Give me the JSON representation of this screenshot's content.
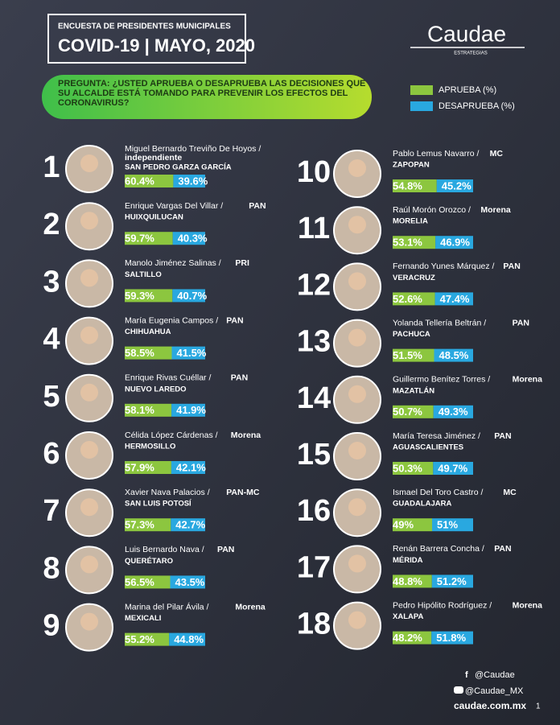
{
  "header": {
    "subtitle": "ENCUESTA DE PRESIDENTES MUNICIPALES",
    "title": "COVID-19 | MAYO, 2020"
  },
  "logo": {
    "name": "Caudae",
    "tagline": "ESTRATEGIAS"
  },
  "question": "PREGUNTA: ¿USTED APRUEBA O DESAPRUEBA LAS DECISIONES QUE SU ALCALDE ESTÁ TOMANDO PARA PREVENIR LOS EFECTOS DEL CORONAVIRUS?",
  "legend": [
    {
      "label": "APRUEBA (%)",
      "color": "#8cc63f"
    },
    {
      "label": "DESAPRUEBA (%)",
      "color": "#29a8e0"
    }
  ],
  "mayors": [
    {
      "rank": 1,
      "name": "Miguel Bernardo Treviño De Hoyos /",
      "party": "independiente",
      "city": "SAN PEDRO GARZA GARCÍA",
      "approve": 60.4,
      "approve_label": "60.4%",
      "disapprove": 39.6,
      "disapprove_label": "39.6%"
    },
    {
      "rank": 2,
      "name": "Enrique Vargas Del Villar /",
      "party": "PAN",
      "city": "HUIXQUILUCAN",
      "approve": 59.7,
      "approve_label": "59.7%",
      "disapprove": 40.3,
      "disapprove_label": "40.3%"
    },
    {
      "rank": 3,
      "name": "Manolo Jiménez Salinas /",
      "party": "PRI",
      "city": "SALTILLO",
      "approve": 59.3,
      "approve_label": "59.3%",
      "disapprove": 40.7,
      "disapprove_label": "40.7%"
    },
    {
      "rank": 4,
      "name": "María Eugenia Campos /",
      "party": "PAN",
      "city": "CHIHUAHUA",
      "approve": 58.5,
      "approve_label": "58.5%",
      "disapprove": 41.5,
      "disapprove_label": "41.5%"
    },
    {
      "rank": 5,
      "name": "Enrique Rivas Cuéllar /",
      "party": "PAN",
      "city": "NUEVO LAREDO",
      "approve": 58.1,
      "approve_label": "58.1%",
      "disapprove": 41.9,
      "disapprove_label": "41.9%"
    },
    {
      "rank": 6,
      "name": "Célida López Cárdenas /",
      "party": "Morena",
      "city": "HERMOSILLO",
      "approve": 57.9,
      "approve_label": "57.9%",
      "disapprove": 42.1,
      "disapprove_label": "42.1%"
    },
    {
      "rank": 7,
      "name": "Xavier Nava Palacios /",
      "party": "PAN-MC",
      "city": "SAN LUIS POTOSÍ",
      "approve": 57.3,
      "approve_label": "57.3%",
      "disapprove": 42.7,
      "disapprove_label": "42.7%"
    },
    {
      "rank": 8,
      "name": "Luis Bernardo Nava /",
      "party": "PAN",
      "city": "QUERÉTARO",
      "approve": 56.5,
      "approve_label": "56.5%",
      "disapprove": 43.5,
      "disapprove_label": "43.5%"
    },
    {
      "rank": 9,
      "name": "Marina del Pilar Ávila /",
      "party": "Morena",
      "city": "MEXICALI",
      "approve": 55.2,
      "approve_label": "55.2%",
      "disapprove": 44.8,
      "disapprove_label": "44.8%"
    },
    {
      "rank": 10,
      "name": "Pablo Lemus Navarro /",
      "party": "MC",
      "city": "ZAPOPAN",
      "approve": 54.8,
      "approve_label": "54.8%",
      "disapprove": 45.2,
      "disapprove_label": "45.2%"
    },
    {
      "rank": 11,
      "name": "Raúl Morón Orozco /",
      "party": "Morena",
      "city": "MORELIA",
      "approve": 53.1,
      "approve_label": "53.1%",
      "disapprove": 46.9,
      "disapprove_label": "46.9%"
    },
    {
      "rank": 12,
      "name": "Fernando Yunes Márquez /",
      "party": "PAN",
      "city": "VERACRUZ",
      "approve": 52.6,
      "approve_label": "52.6%",
      "disapprove": 47.4,
      "disapprove_label": "47.4%"
    },
    {
      "rank": 13,
      "name": "Yolanda Tellería Beltrán /",
      "party": "PAN",
      "city": "PACHUCA",
      "approve": 51.5,
      "approve_label": "51.5%",
      "disapprove": 48.5,
      "disapprove_label": "48.5%"
    },
    {
      "rank": 14,
      "name": "Guillermo Benítez Torres /",
      "party": "Morena",
      "city": "MAZATLÁN",
      "approve": 50.7,
      "approve_label": "50.7%",
      "disapprove": 49.3,
      "disapprove_label": "49.3%"
    },
    {
      "rank": 15,
      "name": "María Teresa Jiménez /",
      "party": "PAN",
      "city": "AGUASCALIENTES",
      "approve": 50.3,
      "approve_label": "50.3%",
      "disapprove": 49.7,
      "disapprove_label": "49.7%"
    },
    {
      "rank": 16,
      "name": "Ismael Del Toro Castro /",
      "party": "MC",
      "city": "GUADALAJARA",
      "approve": 49,
      "approve_label": "49%",
      "disapprove": 51,
      "disapprove_label": "51%"
    },
    {
      "rank": 17,
      "name": "Renán Barrera Concha /",
      "party": "PAN",
      "city": "MÉRIDA",
      "approve": 48.8,
      "approve_label": "48.8%",
      "disapprove": 51.2,
      "disapprove_label": "51.2%"
    },
    {
      "rank": 18,
      "name": "Pedro Hipólito Rodríguez /",
      "party": "Morena",
      "city": "XALAPA",
      "approve": 48.2,
      "approve_label": "48.2%",
      "disapprove": 51.8,
      "disapprove_label": "51.8%"
    }
  ],
  "footer": {
    "facebook": "@Caudae",
    "twitter": "@Caudae_MX",
    "website": "caudae.com.mx",
    "page": "1"
  }
}
